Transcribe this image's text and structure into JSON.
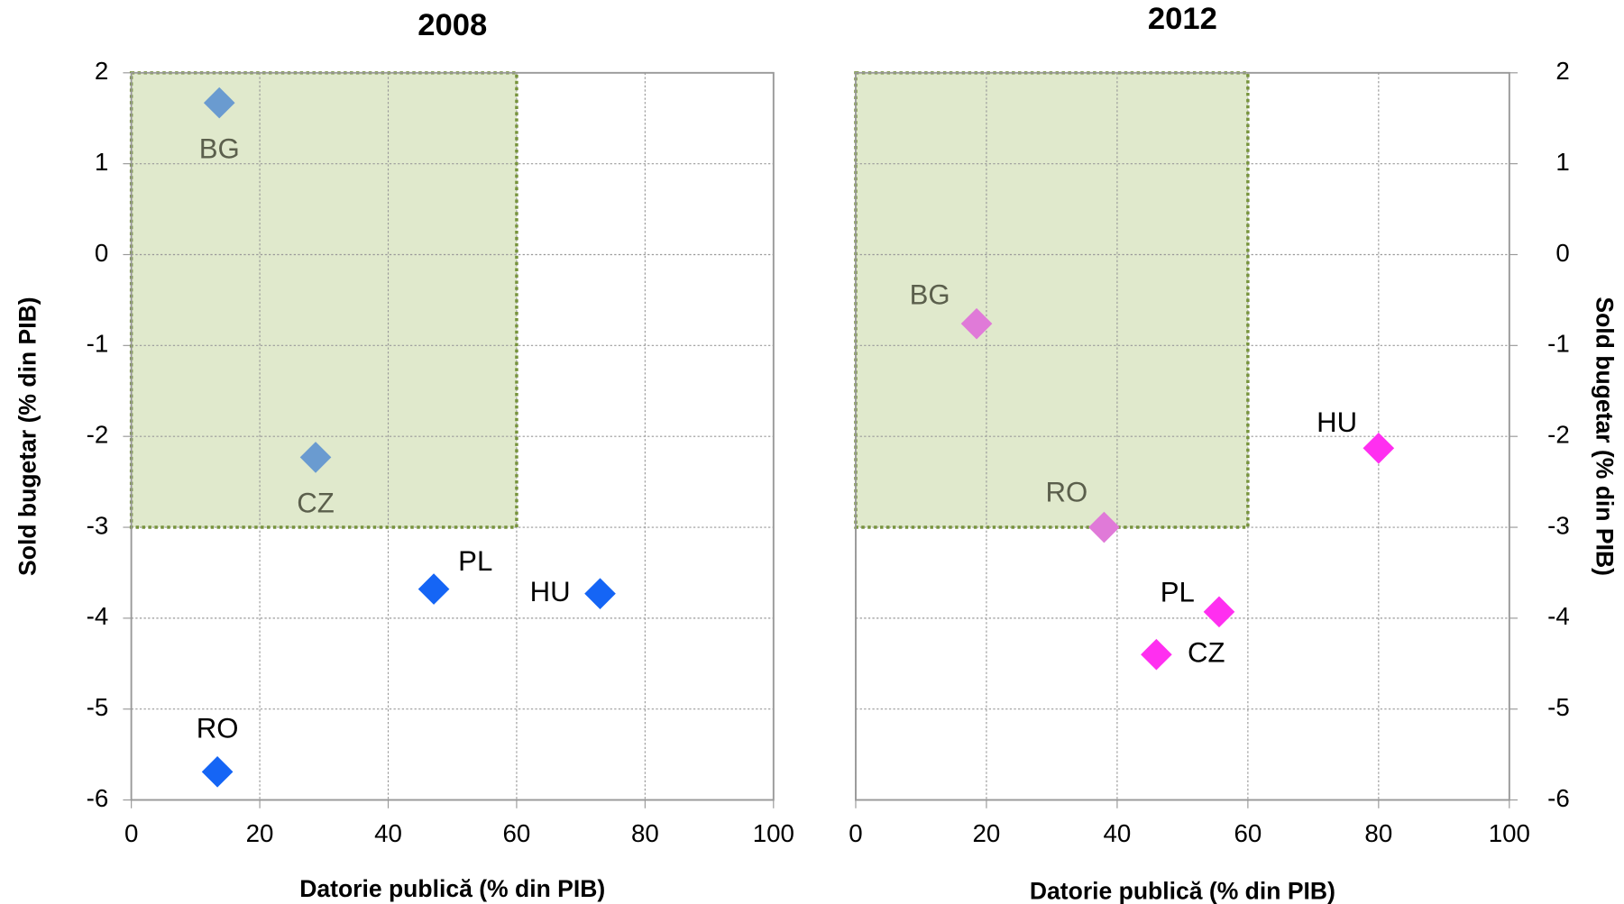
{
  "chart_data": [
    {
      "type": "scatter",
      "title": "2008",
      "x_label": "Datorie publică (% din PIB)",
      "y_label": "Sold bugetar (% din PIB)",
      "y_axis_side": "left",
      "labels": [
        "BG",
        "CZ",
        "PL",
        "HU",
        "RO"
      ],
      "x": [
        13.7,
        28.7,
        47.1,
        73,
        13.4
      ],
      "values": [
        1.67,
        -2.23,
        -3.68,
        -3.73,
        -5.69
      ],
      "colors": [
        "#6a9bd0",
        "#6a9bd0",
        "#1565f5",
        "#1565f5",
        "#1565f5"
      ],
      "highlight": {
        "x": [
          0,
          60
        ],
        "y": [
          -3,
          2
        ],
        "color": "#e0e9cc",
        "border": "#77933c"
      },
      "xlim": [
        0,
        100
      ],
      "xticks": [
        0,
        20,
        40,
        60,
        80,
        100
      ],
      "ylim": [
        -6,
        2
      ],
      "yticks": [
        -6,
        -5,
        -4,
        -3,
        -2,
        -1,
        0,
        1,
        2
      ],
      "grid": true
    },
    {
      "type": "scatter",
      "title": "2012",
      "x_label": "Datorie publică (% din PIB)",
      "y_label": "Sold bugetar (% din PIB)",
      "y_axis_side": "right",
      "labels": [
        "BG",
        "RO",
        "HU",
        "PL",
        "CZ"
      ],
      "x": [
        18.5,
        38,
        80,
        55.6,
        46
      ],
      "values": [
        -0.76,
        -3.0,
        -2.13,
        -3.93,
        -4.4
      ],
      "colors": [
        "#e07ad8",
        "#e07ad8",
        "#ff2ff0",
        "#ff2ff0",
        "#ff2ff0"
      ],
      "highlight": {
        "x": [
          0,
          60
        ],
        "y": [
          -3,
          2
        ],
        "color": "#e0e9cc",
        "border": "#77933c"
      },
      "xlim": [
        0,
        100
      ],
      "xticks": [
        0,
        20,
        40,
        60,
        80,
        100
      ],
      "ylim": [
        -6,
        2
      ],
      "yticks": [
        -6,
        -5,
        -4,
        -3,
        -2,
        -1,
        0,
        1,
        2
      ],
      "grid": true
    }
  ]
}
